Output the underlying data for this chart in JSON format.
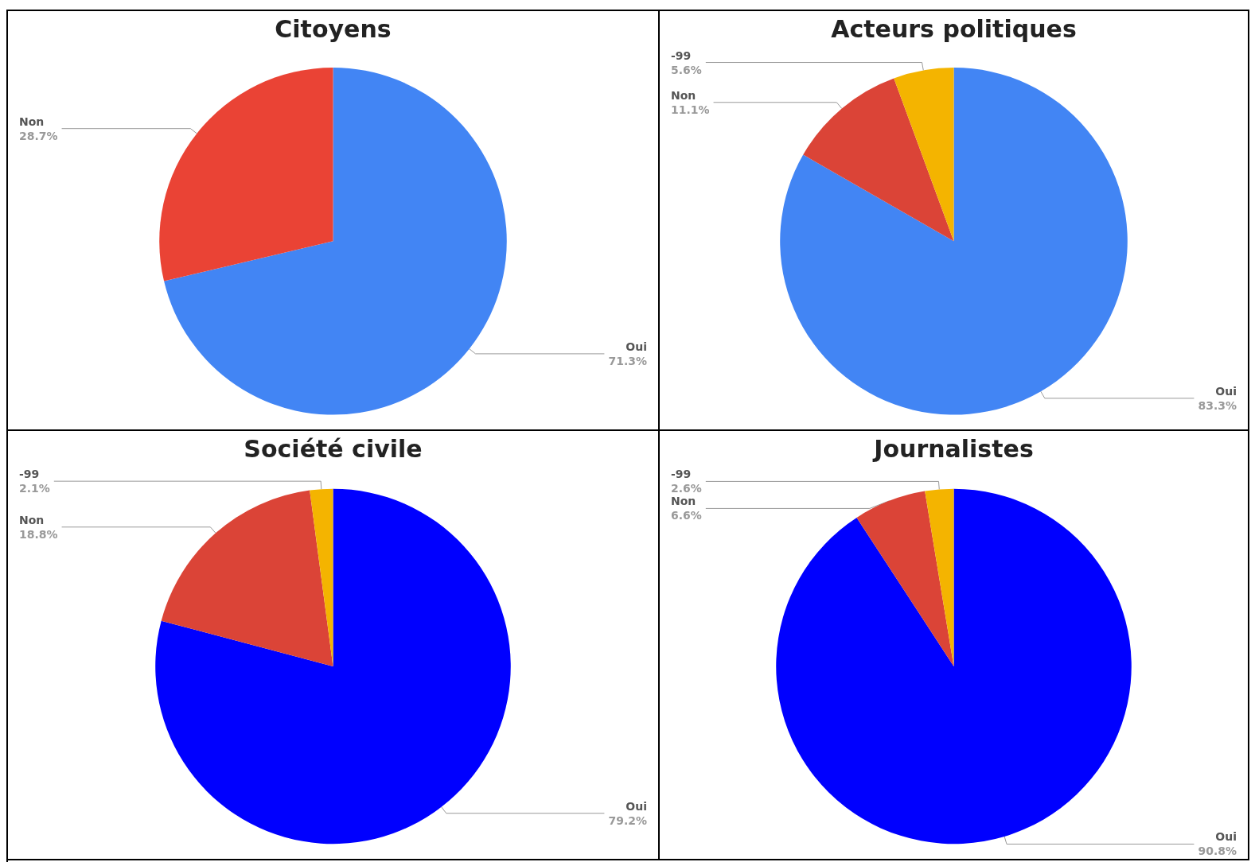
{
  "chart_data": [
    {
      "type": "pie",
      "title": "Citoyens",
      "categories": [
        "Oui",
        "Non"
      ],
      "values": [
        71.3,
        28.7
      ],
      "colors": [
        "#4285f4",
        "#ea4335"
      ],
      "value_labels": [
        "71.3%",
        "28.7%"
      ]
    },
    {
      "type": "pie",
      "title": "Acteurs politiques",
      "categories": [
        "Oui",
        "Non",
        "-99"
      ],
      "values": [
        83.3,
        11.1,
        5.6
      ],
      "colors": [
        "#4285f4",
        "#db4437",
        "#f4b400"
      ],
      "value_labels": [
        "83.3%",
        "11.1%",
        "5.6%"
      ]
    },
    {
      "type": "pie",
      "title": "Société civile",
      "categories": [
        "Oui",
        "Non",
        "-99"
      ],
      "values": [
        79.2,
        18.8,
        2.1
      ],
      "colors": [
        "#0000ff",
        "#db4437",
        "#f4b400"
      ],
      "value_labels": [
        "79.2%",
        "18.8%",
        "2.1%"
      ]
    },
    {
      "type": "pie",
      "title": "Journalistes",
      "categories": [
        "Oui",
        "Non",
        "-99"
      ],
      "values": [
        90.8,
        6.6,
        2.6
      ],
      "colors": [
        "#0000ff",
        "#db4437",
        "#f4b400"
      ],
      "value_labels": [
        "90.8%",
        "6.6%",
        "2.6%"
      ]
    }
  ]
}
